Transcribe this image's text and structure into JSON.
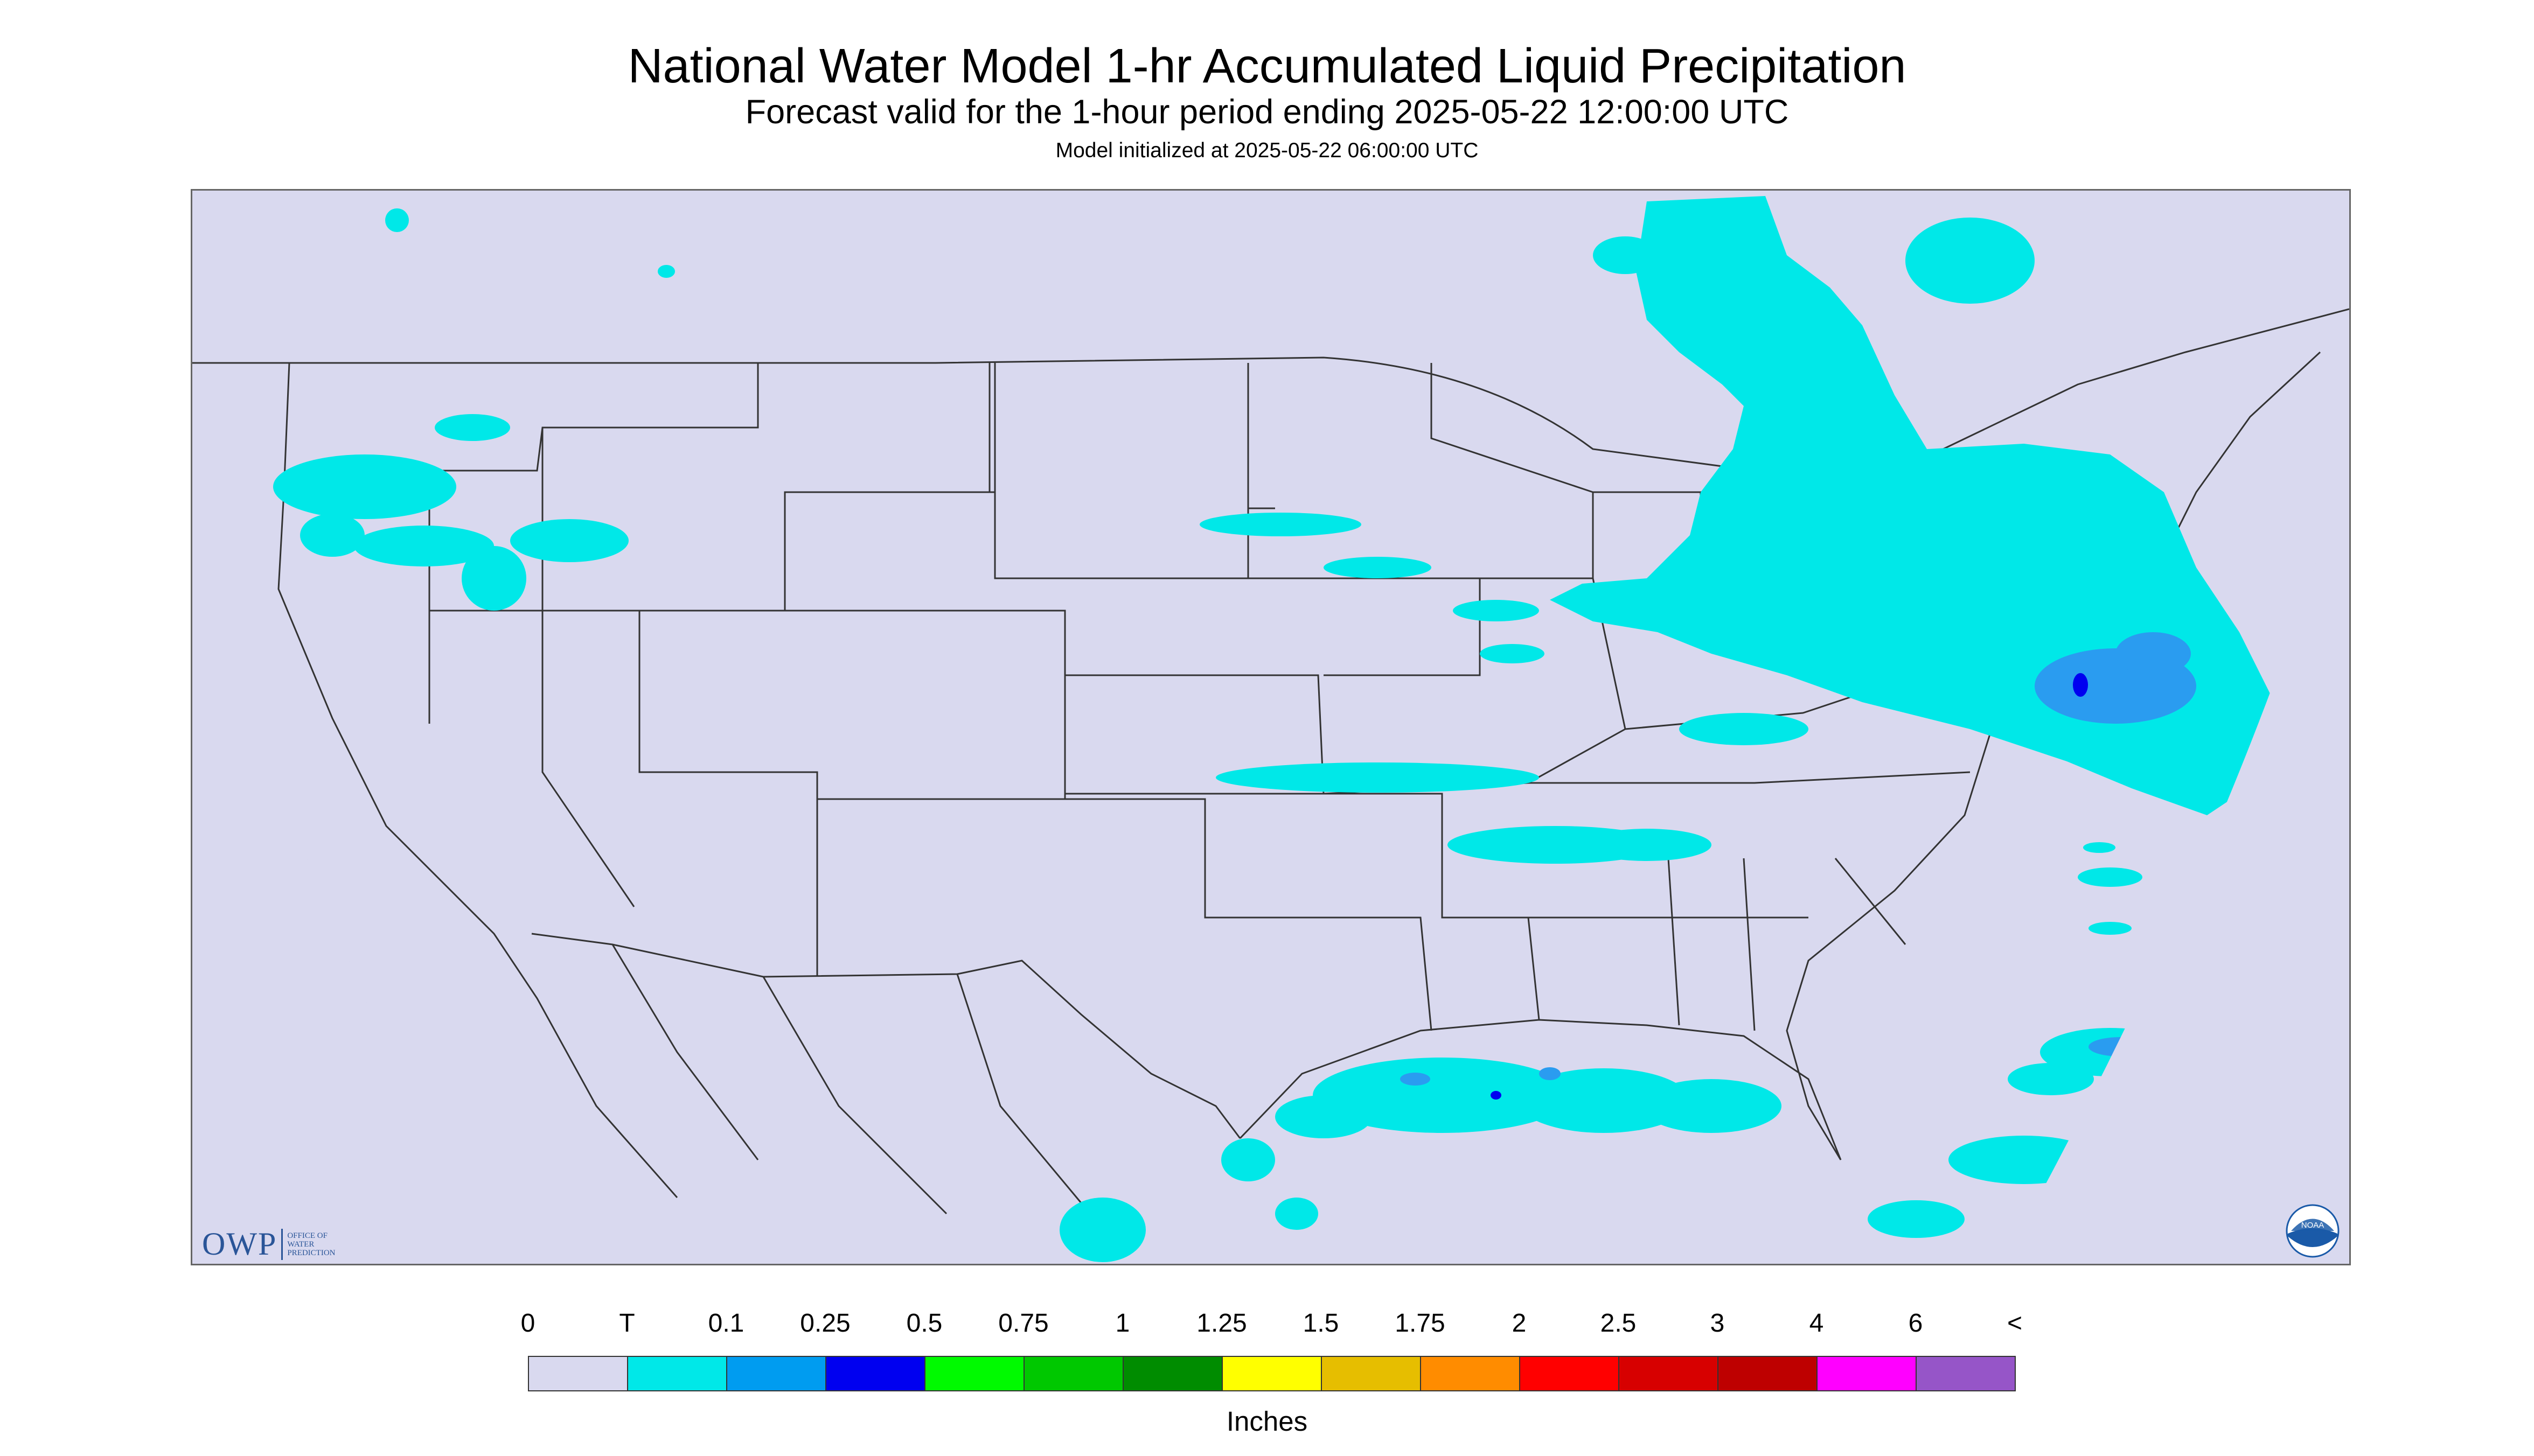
{
  "title": "National Water Model 1-hr Accumulated Liquid Precipitation",
  "subtitle": "Forecast valid for the 1-hour period ending 2025-05-22 12:00:00 UTC",
  "init_line": "Model initialized at 2025-05-22 06:00:00 UTC",
  "logos": {
    "owp_text": "OWP",
    "owp_sub": [
      "OFFICE OF",
      "WATER",
      "PREDICTION"
    ],
    "noaa_text": "NOAA"
  },
  "legend": {
    "ticks": [
      "0",
      "T",
      "0.1",
      "0.25",
      "0.5",
      "0.75",
      "1",
      "1.25",
      "1.5",
      "1.75",
      "2",
      "2.5",
      "3",
      "4",
      "6",
      "<"
    ],
    "colors": [
      "#d9d9ef",
      "#00e8e8",
      "#009cf0",
      "#0000f0",
      "#00fa00",
      "#00c800",
      "#008c00",
      "#ffff00",
      "#e6be00",
      "#ff8c00",
      "#ff0000",
      "#d70000",
      "#be0000",
      "#ff00ff",
      "#9655c8"
    ],
    "units": "Inches"
  },
  "map_colors": {
    "background": "#d9d9ef",
    "trace": "#00e8e8",
    "light": "#2a9cf0",
    "medium": "#0000f0",
    "borders": "#333333"
  }
}
